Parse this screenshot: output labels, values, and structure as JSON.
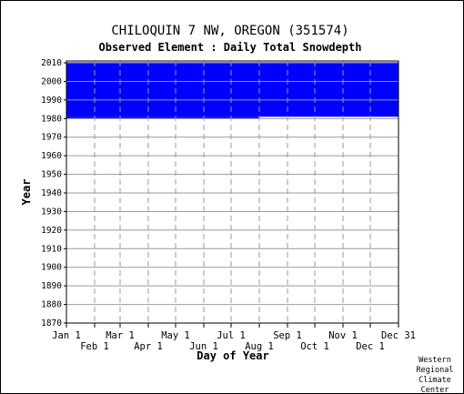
{
  "chart_data": {
    "type": "heatmap",
    "title": "CHILOQUIN 7 NW, OREGON   (351574)",
    "subtitle": "Observed Element : Daily Total Snowdepth",
    "xlabel": "Day of Year",
    "ylabel": "Year",
    "ylim": [
      1870,
      2011
    ],
    "xlim": [
      1,
      366
    ],
    "y_ticks": [
      1870,
      1880,
      1890,
      1900,
      1910,
      1920,
      1930,
      1940,
      1950,
      1960,
      1970,
      1980,
      1990,
      2000,
      2010
    ],
    "x_ticks_top_row": [
      {
        "label": "Jan 1",
        "day": 1
      },
      {
        "label": "Mar 1",
        "day": 60
      },
      {
        "label": "May 1",
        "day": 121
      },
      {
        "label": "Jul 1",
        "day": 182
      },
      {
        "label": "Sep 1",
        "day": 244
      },
      {
        "label": "Nov 1",
        "day": 305
      },
      {
        "label": "Dec 31",
        "day": 366
      }
    ],
    "x_ticks_bottom_row": [
      {
        "label": "Feb 1",
        "day": 32
      },
      {
        "label": "Apr 1",
        "day": 91
      },
      {
        "label": "Jun 1",
        "day": 152
      },
      {
        "label": "Aug 1",
        "day": 213
      },
      {
        "label": "Oct 1",
        "day": 274
      },
      {
        "label": "Dec 1",
        "day": 335
      }
    ],
    "grid": true,
    "data_color": "#0000ff",
    "data_coverage": {
      "start_year": 1980,
      "end_year": 2010,
      "first_full_year": 1981
    }
  },
  "credit": [
    "Western",
    "Regional",
    "Climate",
    "Center"
  ]
}
